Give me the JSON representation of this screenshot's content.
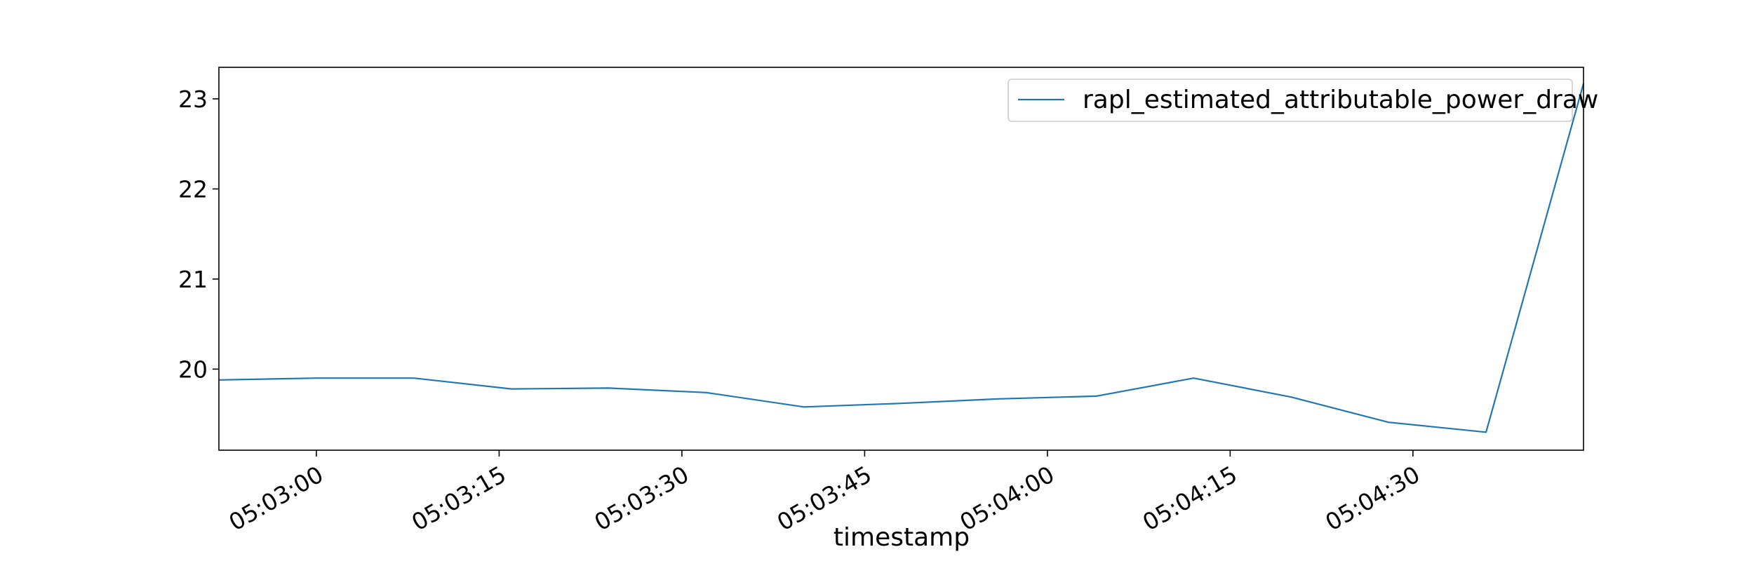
{
  "chart_data": {
    "type": "line",
    "title": "",
    "xlabel": "timestamp",
    "ylabel": "",
    "x_tick_labels": [
      "05:03:00",
      "05:03:15",
      "05:03:30",
      "05:03:45",
      "05:04:00",
      "05:04:15",
      "05:04:30"
    ],
    "y_tick_values": [
      20,
      21,
      22,
      23
    ],
    "xlim": [
      "05:02:52",
      "05:04:44"
    ],
    "ylim": [
      19.1,
      23.35
    ],
    "grid": false,
    "legend_position": "top-right",
    "series": [
      {
        "name": "rapl_estimated_attributable_power_draw",
        "color": "#1f77b4",
        "x": [
          "05:02:52",
          "05:03:00",
          "05:03:08",
          "05:03:16",
          "05:03:24",
          "05:03:32",
          "05:03:40",
          "05:03:48",
          "05:03:56",
          "05:04:04",
          "05:04:12",
          "05:04:20",
          "05:04:28",
          "05:04:36",
          "05:04:44"
        ],
        "y": [
          19.88,
          19.9,
          19.9,
          19.78,
          19.79,
          19.74,
          19.58,
          19.62,
          19.67,
          19.7,
          19.9,
          19.69,
          19.41,
          19.3,
          23.17
        ]
      }
    ]
  }
}
